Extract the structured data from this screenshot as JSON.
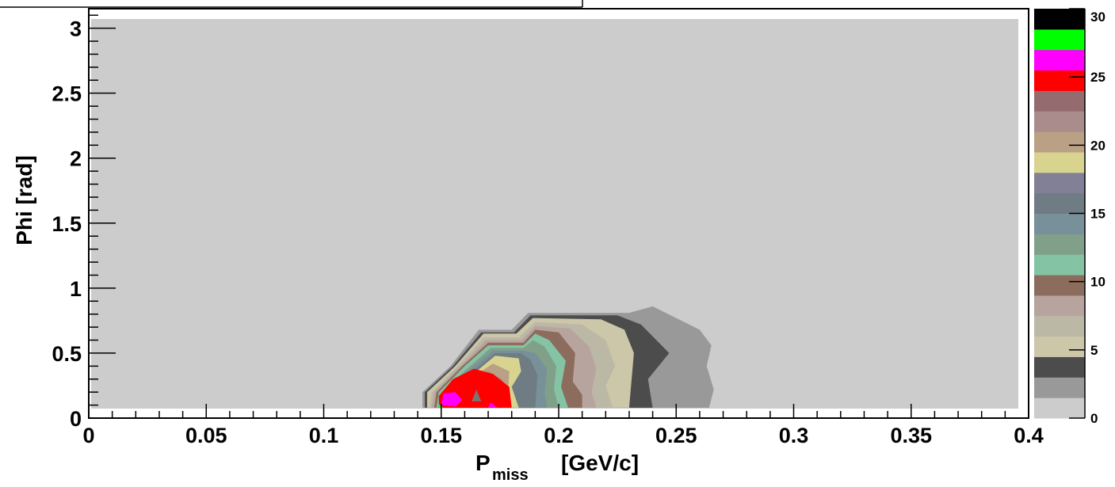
{
  "chart_data": {
    "type": "contour",
    "title": "",
    "xlabel": "P",
    "xlabel_subscript": "miss",
    "xlabel_unit": "[GeV/c]",
    "ylabel": "Phi [rad]",
    "xlim": [
      0,
      0.4
    ],
    "ylim": [
      0,
      3.15
    ],
    "zlim": [
      0,
      30
    ],
    "x_ticks": [
      0,
      0.05,
      0.1,
      0.15,
      0.2,
      0.25,
      0.3,
      0.35,
      0.4
    ],
    "x_tick_labels": [
      "0",
      "0.05",
      "0.1",
      "0.15",
      "0.2",
      "0.25",
      "0.3",
      "0.35",
      "0.4"
    ],
    "y_ticks": [
      0,
      0.5,
      1,
      1.5,
      2,
      2.5,
      3
    ],
    "y_tick_labels": [
      "0",
      "0.5",
      "1",
      "1.5",
      "2",
      "2.5",
      "3"
    ],
    "z_ticks": [
      0,
      5,
      10,
      15,
      20,
      25,
      30
    ],
    "z_tick_labels": [
      "0",
      "5",
      "10",
      "15",
      "20",
      "25",
      "30"
    ],
    "grid": false,
    "legend": "colorbar-right",
    "background_level_color": "#cccccc",
    "colorbar_colors": [
      "#cccccc",
      "#999999",
      "#4c4c4c",
      "#ccc7a8",
      "#bcb8a6",
      "#b8a49e",
      "#8c6c5c",
      "#84c4a4",
      "#80a08a",
      "#78909a",
      "#707c84",
      "#828096",
      "#d8d490",
      "#baa084",
      "#aa8c8c",
      "#946c70",
      "#ff0000",
      "#ff00ff",
      "#00ff00",
      "#000000"
    ],
    "contour_levels": [
      {
        "level": 1.5,
        "color": "#999999",
        "points": [
          [
            0.142,
            0.08
          ],
          [
            0.142,
            0.2
          ],
          [
            0.154,
            0.4
          ],
          [
            0.166,
            0.68
          ],
          [
            0.18,
            0.68
          ],
          [
            0.187,
            0.81
          ],
          [
            0.23,
            0.81
          ],
          [
            0.24,
            0.86
          ],
          [
            0.26,
            0.68
          ],
          [
            0.265,
            0.56
          ],
          [
            0.263,
            0.4
          ],
          [
            0.266,
            0.22
          ],
          [
            0.264,
            0.08
          ]
        ]
      },
      {
        "level": 3,
        "color": "#4c4c4c",
        "points": [
          [
            0.143,
            0.08
          ],
          [
            0.143,
            0.2
          ],
          [
            0.155,
            0.4
          ],
          [
            0.167,
            0.66
          ],
          [
            0.181,
            0.66
          ],
          [
            0.188,
            0.79
          ],
          [
            0.225,
            0.79
          ],
          [
            0.235,
            0.72
          ],
          [
            0.247,
            0.5
          ],
          [
            0.238,
            0.3
          ],
          [
            0.24,
            0.08
          ]
        ]
      },
      {
        "level": 4.5,
        "color": "#ccc7a8",
        "points": [
          [
            0.144,
            0.08
          ],
          [
            0.144,
            0.2
          ],
          [
            0.156,
            0.4
          ],
          [
            0.168,
            0.65
          ],
          [
            0.182,
            0.65
          ],
          [
            0.189,
            0.77
          ],
          [
            0.218,
            0.76
          ],
          [
            0.228,
            0.68
          ],
          [
            0.232,
            0.5
          ],
          [
            0.23,
            0.08
          ]
        ]
      },
      {
        "level": 6,
        "color": "#bcb8a6",
        "points": [
          [
            0.145,
            0.08
          ],
          [
            0.146,
            0.2
          ],
          [
            0.157,
            0.4
          ],
          [
            0.168,
            0.62
          ],
          [
            0.183,
            0.62
          ],
          [
            0.19,
            0.74
          ],
          [
            0.21,
            0.72
          ],
          [
            0.22,
            0.6
          ],
          [
            0.224,
            0.4
          ],
          [
            0.22,
            0.25
          ],
          [
            0.223,
            0.08
          ]
        ]
      },
      {
        "level": 7.5,
        "color": "#b8a49e",
        "points": [
          [
            0.146,
            0.08
          ],
          [
            0.147,
            0.2
          ],
          [
            0.158,
            0.4
          ],
          [
            0.169,
            0.6
          ],
          [
            0.184,
            0.6
          ],
          [
            0.19,
            0.71
          ],
          [
            0.205,
            0.69
          ],
          [
            0.213,
            0.55
          ],
          [
            0.216,
            0.38
          ],
          [
            0.214,
            0.2
          ],
          [
            0.216,
            0.08
          ]
        ]
      },
      {
        "level": 9,
        "color": "#8c6c5c",
        "points": [
          [
            0.147,
            0.08
          ],
          [
            0.148,
            0.2
          ],
          [
            0.159,
            0.4
          ],
          [
            0.17,
            0.58
          ],
          [
            0.185,
            0.58
          ],
          [
            0.19,
            0.68
          ],
          [
            0.2,
            0.66
          ],
          [
            0.207,
            0.5
          ],
          [
            0.206,
            0.28
          ],
          [
            0.21,
            0.18
          ],
          [
            0.21,
            0.08
          ]
        ]
      },
      {
        "level": 10.5,
        "color": "#84c4a4",
        "points": [
          [
            0.148,
            0.08
          ],
          [
            0.149,
            0.2
          ],
          [
            0.16,
            0.4
          ],
          [
            0.17,
            0.56
          ],
          [
            0.185,
            0.56
          ],
          [
            0.19,
            0.65
          ],
          [
            0.196,
            0.6
          ],
          [
            0.203,
            0.44
          ],
          [
            0.201,
            0.24
          ],
          [
            0.204,
            0.08
          ]
        ]
      },
      {
        "level": 12,
        "color": "#80a08a",
        "points": [
          [
            0.149,
            0.08
          ],
          [
            0.15,
            0.2
          ],
          [
            0.161,
            0.38
          ],
          [
            0.171,
            0.54
          ],
          [
            0.185,
            0.54
          ],
          [
            0.189,
            0.6
          ],
          [
            0.194,
            0.55
          ],
          [
            0.199,
            0.4
          ],
          [
            0.198,
            0.22
          ],
          [
            0.2,
            0.08
          ]
        ]
      },
      {
        "level": 13.5,
        "color": "#78909a",
        "points": [
          [
            0.15,
            0.08
          ],
          [
            0.151,
            0.2
          ],
          [
            0.161,
            0.36
          ],
          [
            0.172,
            0.52
          ],
          [
            0.185,
            0.52
          ],
          [
            0.19,
            0.5
          ],
          [
            0.195,
            0.38
          ],
          [
            0.194,
            0.2
          ],
          [
            0.195,
            0.08
          ]
        ]
      },
      {
        "level": 15,
        "color": "#707c84",
        "points": [
          [
            0.151,
            0.08
          ],
          [
            0.152,
            0.2
          ],
          [
            0.162,
            0.34
          ],
          [
            0.173,
            0.5
          ],
          [
            0.184,
            0.5
          ],
          [
            0.188,
            0.45
          ],
          [
            0.191,
            0.33
          ],
          [
            0.19,
            0.08
          ]
        ]
      },
      {
        "level": 16.5,
        "color": "#d8d490",
        "points": [
          [
            0.152,
            0.08
          ],
          [
            0.153,
            0.2
          ],
          [
            0.163,
            0.33
          ],
          [
            0.173,
            0.48
          ],
          [
            0.183,
            0.46
          ],
          [
            0.184,
            0.36
          ],
          [
            0.18,
            0.24
          ],
          [
            0.183,
            0.08
          ]
        ]
      },
      {
        "level": 18,
        "color": "#baa084",
        "points": [
          [
            0.153,
            0.08
          ],
          [
            0.154,
            0.2
          ],
          [
            0.163,
            0.31
          ],
          [
            0.172,
            0.42
          ],
          [
            0.179,
            0.36
          ],
          [
            0.178,
            0.08
          ]
        ]
      },
      {
        "level": 19.5,
        "color": "#aa8c8c",
        "points": [
          [
            0.154,
            0.08
          ],
          [
            0.155,
            0.2
          ],
          [
            0.163,
            0.3
          ],
          [
            0.17,
            0.36
          ],
          [
            0.176,
            0.3
          ],
          [
            0.176,
            0.08
          ]
        ]
      },
      {
        "level": 21,
        "color": "#946c70",
        "points": [
          [
            0.155,
            0.08
          ],
          [
            0.156,
            0.2
          ],
          [
            0.164,
            0.34
          ],
          [
            0.17,
            0.34
          ],
          [
            0.175,
            0.26
          ],
          [
            0.175,
            0.08
          ]
        ]
      },
      {
        "level": 22.5,
        "color": "#ff0000",
        "points": [
          [
            0.149,
            0.08
          ],
          [
            0.149,
            0.17
          ],
          [
            0.155,
            0.3
          ],
          [
            0.164,
            0.38
          ],
          [
            0.172,
            0.34
          ],
          [
            0.179,
            0.24
          ],
          [
            0.18,
            0.08
          ]
        ]
      },
      {
        "level": 24,
        "color": "#777777",
        "points": [
          [
            0.163,
            0.13
          ],
          [
            0.165,
            0.22
          ],
          [
            0.167,
            0.13
          ]
        ]
      },
      {
        "level": 25.5,
        "color": "#ff00ff",
        "points": [
          [
            0.15,
            0.1
          ],
          [
            0.151,
            0.19
          ],
          [
            0.156,
            0.2
          ],
          [
            0.159,
            0.14
          ],
          [
            0.156,
            0.09
          ]
        ]
      },
      {
        "level": 25.5,
        "color": "#ff00ff",
        "points": [
          [
            0.17,
            0.08
          ],
          [
            0.171,
            0.12
          ],
          [
            0.174,
            0.08
          ]
        ]
      },
      {
        "level": 28.5,
        "color": "#00ff00",
        "points": [
          [
            0.149,
            0.08
          ],
          [
            0.149,
            0.11
          ],
          [
            0.151,
            0.08
          ]
        ]
      }
    ]
  }
}
